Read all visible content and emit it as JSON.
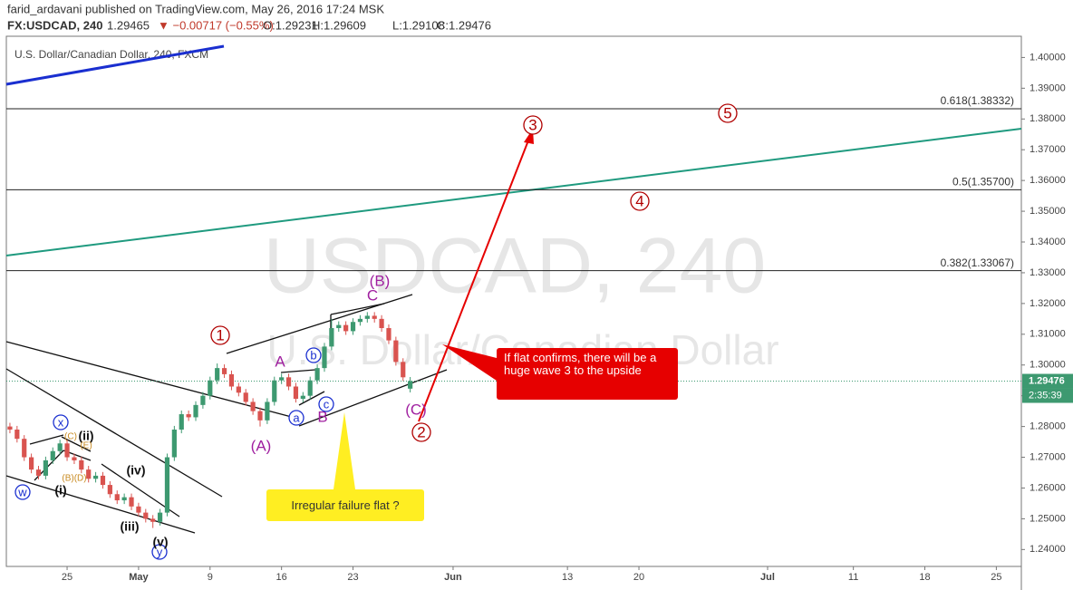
{
  "header": {
    "publisher": "farid_ardavani published on TradingView.com, May 26, 2016 17:24 MSK",
    "symbol": "FX:USDCAD, 240",
    "last": "1.29465",
    "change": "▼ −0.00717 (−0.55%)",
    "ohlc": [
      "O:1.29231",
      "H:1.29609",
      "L:1.29108",
      "C:1.29476"
    ]
  },
  "chart_data": {
    "type": "candlestick",
    "title": "U.S. Dollar/Canadian Dollar, 240, FXCM",
    "watermark": "USDCAD, 240",
    "watermark_sub": "U.S. Dollar/Canadian Dollar",
    "x": [
      -4,
      -3.5,
      -3,
      -2.5,
      -2,
      -1.5,
      -1,
      -0.5,
      0,
      0.5,
      1,
      1.5,
      2,
      2.5,
      3,
      3.5,
      4,
      4.5,
      5,
      5.5,
      6,
      6.5,
      7,
      7.5,
      8,
      8.5,
      9,
      9.5,
      10,
      10.5,
      11,
      11.5,
      12,
      12.5,
      13,
      13.5,
      14,
      14.5,
      15,
      15.5,
      16,
      16.5,
      17,
      17.5,
      18,
      18.5,
      19,
      19.5,
      20,
      20.5,
      21,
      21.5,
      22,
      22.5,
      23,
      23.5,
      24
    ],
    "open": [
      1.28,
      1.279,
      1.276,
      1.27,
      1.266,
      1.264,
      1.269,
      1.272,
      1.2745,
      1.27,
      1.269,
      1.266,
      1.263,
      1.264,
      1.261,
      1.258,
      1.256,
      1.257,
      1.254,
      1.252,
      1.25,
      1.249,
      1.252,
      1.27,
      1.279,
      1.284,
      1.283,
      1.287,
      1.29,
      1.295,
      1.299,
      1.297,
      1.293,
      1.291,
      1.288,
      1.285,
      1.282,
      1.288,
      1.295,
      1.296,
      1.293,
      1.289,
      1.29,
      1.295,
      1.299,
      1.306,
      1.312,
      1.313,
      1.311,
      1.314,
      1.315,
      1.316,
      1.315,
      1.312,
      1.308,
      1.301,
      1.29231
    ],
    "high": [
      1.2812,
      1.2802,
      1.2772,
      1.2712,
      1.2672,
      1.2702,
      1.2732,
      1.2757,
      1.2757,
      1.2712,
      1.2702,
      1.2672,
      1.2652,
      1.2652,
      1.2622,
      1.2592,
      1.2582,
      1.2582,
      1.2552,
      1.2532,
      1.2512,
      1.2532,
      1.2712,
      1.2802,
      1.2852,
      1.2852,
      1.2882,
      1.2912,
      1.2962,
      1.3005,
      1.3002,
      1.2982,
      1.2942,
      1.2922,
      1.2892,
      1.2862,
      1.2892,
      1.2962,
      1.2972,
      1.2972,
      1.2942,
      1.2912,
      1.2962,
      1.3002,
      1.3072,
      1.315,
      1.3142,
      1.3142,
      1.3152,
      1.3162,
      1.3172,
      1.3172,
      1.3162,
      1.3132,
      1.3092,
      1.3022,
      1.29609
    ],
    "low": [
      1.2778,
      1.2748,
      1.2688,
      1.2648,
      1.2628,
      1.2628,
      1.2678,
      1.2708,
      1.2688,
      1.2678,
      1.2648,
      1.2618,
      1.2618,
      1.2598,
      1.2568,
      1.2548,
      1.2548,
      1.2528,
      1.2508,
      1.2488,
      1.247,
      1.2478,
      1.2508,
      1.2688,
      1.2778,
      1.2818,
      1.2818,
      1.2858,
      1.2888,
      1.2938,
      1.2958,
      1.2918,
      1.2898,
      1.2868,
      1.2838,
      1.28,
      1.2808,
      1.2868,
      1.2938,
      1.2918,
      1.2878,
      1.2878,
      1.2888,
      1.2938,
      1.2978,
      1.3048,
      1.3108,
      1.3098,
      1.3098,
      1.3128,
      1.3138,
      1.3138,
      1.3108,
      1.3068,
      1.2998,
      1.2948,
      1.29108
    ],
    "close": [
      1.279,
      1.276,
      1.27,
      1.266,
      1.264,
      1.269,
      1.272,
      1.2745,
      1.27,
      1.269,
      1.266,
      1.263,
      1.264,
      1.261,
      1.258,
      1.256,
      1.257,
      1.254,
      1.252,
      1.25,
      1.249,
      1.252,
      1.27,
      1.279,
      1.284,
      1.283,
      1.287,
      1.29,
      1.295,
      1.299,
      1.297,
      1.293,
      1.291,
      1.288,
      1.285,
      1.282,
      1.288,
      1.295,
      1.296,
      1.293,
      1.289,
      1.29,
      1.295,
      1.299,
      1.306,
      1.312,
      1.313,
      1.311,
      1.314,
      1.315,
      1.316,
      1.315,
      1.312,
      1.308,
      1.301,
      1.296,
      1.29476
    ],
    "up_color": "#3d9970",
    "down_color": "#d9534f",
    "xlim": [
      -4.25,
      66.75
    ],
    "xticks": [
      {
        "value": 0,
        "label": "25"
      },
      {
        "value": 5,
        "label": "May"
      },
      {
        "value": 10,
        "label": "9"
      },
      {
        "value": 15,
        "label": "16"
      },
      {
        "value": 20,
        "label": "23"
      },
      {
        "value": 27,
        "label": "Jun"
      },
      {
        "value": 35,
        "label": "13"
      },
      {
        "value": 40,
        "label": "20"
      },
      {
        "value": 49,
        "label": "Jul"
      },
      {
        "value": 55,
        "label": "11"
      },
      {
        "value": 60,
        "label": "18"
      },
      {
        "value": 65,
        "label": "25"
      }
    ],
    "ylim": [
      1.2345,
      1.4069
    ],
    "yticks": [
      {
        "value": 1.24,
        "label": "1.24000"
      },
      {
        "value": 1.25,
        "label": "1.25000"
      },
      {
        "value": 1.26,
        "label": "1.26000"
      },
      {
        "value": 1.27,
        "label": "1.27000"
      },
      {
        "value": 1.28,
        "label": "1.28000"
      },
      {
        "value": 1.29,
        "label": "1.29000"
      },
      {
        "value": 1.3,
        "label": "1.30000"
      },
      {
        "value": 1.31,
        "label": "1.31000"
      },
      {
        "value": 1.32,
        "label": "1.32000"
      },
      {
        "value": 1.33,
        "label": "1.33000"
      },
      {
        "value": 1.34,
        "label": "1.34000"
      },
      {
        "value": 1.35,
        "label": "1.35000"
      },
      {
        "value": 1.36,
        "label": "1.36000"
      },
      {
        "value": 1.37,
        "label": "1.37000"
      },
      {
        "value": 1.38,
        "label": "1.38000"
      },
      {
        "value": 1.39,
        "label": "1.39000"
      },
      {
        "value": 1.4,
        "label": "1.40000"
      }
    ],
    "fib_levels": [
      {
        "value": 1.38332,
        "label": "0.618(1.38332)"
      },
      {
        "value": 1.357,
        "label": "0.5(1.35700)"
      },
      {
        "value": 1.33067,
        "label": "0.382(1.33067)"
      }
    ],
    "last_price": {
      "value": 1.29476,
      "label": "1.29476"
    },
    "countdown": "2:35:39",
    "wave_labels": {
      "red": [
        "1",
        "2",
        "3",
        "4",
        "5"
      ],
      "purple": [
        "(B)",
        "C",
        "A",
        "B",
        "(A)",
        "(C)"
      ],
      "blue": [
        "b",
        "a",
        "c",
        "x",
        "w",
        "y"
      ],
      "black": [
        "(ii)",
        "(iv)",
        "(i)",
        "(iii)",
        "(v)"
      ],
      "orange": [
        "(C)",
        "(E)",
        "(B)(D)"
      ]
    },
    "callouts": [
      "If flat confirms, there will be a huge wave 3 to the upside",
      "Irregular failure flat ?"
    ]
  }
}
